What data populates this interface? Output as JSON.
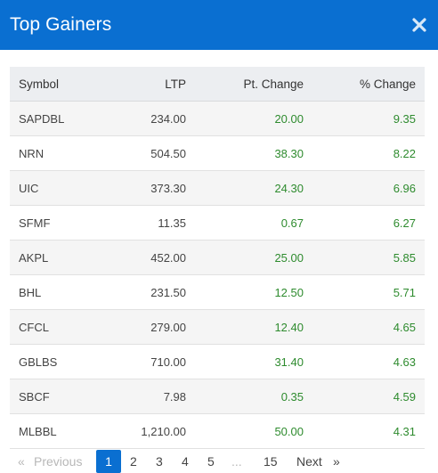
{
  "modal": {
    "title": "Top Gainers",
    "close_icon": "close-icon"
  },
  "colors": {
    "header_bg": "#0a6fd1",
    "positive": "#2e8b2e",
    "active_page": "#0a6fd1"
  },
  "table": {
    "headers": {
      "symbol": "Symbol",
      "ltp": "LTP",
      "pt_change": "Pt. Change",
      "pct_change": "% Change"
    },
    "rows": [
      {
        "symbol": "SAPDBL",
        "ltp": "234.00",
        "pt_change": "20.00",
        "pct_change": "9.35"
      },
      {
        "symbol": "NRN",
        "ltp": "504.50",
        "pt_change": "38.30",
        "pct_change": "8.22"
      },
      {
        "symbol": "UIC",
        "ltp": "373.30",
        "pt_change": "24.30",
        "pct_change": "6.96"
      },
      {
        "symbol": "SFMF",
        "ltp": "11.35",
        "pt_change": "0.67",
        "pct_change": "6.27"
      },
      {
        "symbol": "AKPL",
        "ltp": "452.00",
        "pt_change": "25.00",
        "pct_change": "5.85"
      },
      {
        "symbol": "BHL",
        "ltp": "231.50",
        "pt_change": "12.50",
        "pct_change": "5.71"
      },
      {
        "symbol": "CFCL",
        "ltp": "279.00",
        "pt_change": "12.40",
        "pct_change": "4.65"
      },
      {
        "symbol": "GBLBS",
        "ltp": "710.00",
        "pt_change": "31.40",
        "pct_change": "4.63"
      },
      {
        "symbol": "SBCF",
        "ltp": "7.98",
        "pt_change": "0.35",
        "pct_change": "4.59"
      },
      {
        "symbol": "MLBBL",
        "ltp": "1,210.00",
        "pt_change": "50.00",
        "pct_change": "4.31"
      }
    ]
  },
  "pagination": {
    "first": "«",
    "previous": "Previous",
    "pages": [
      "1",
      "2",
      "3",
      "4",
      "5",
      "15"
    ],
    "ellipsis": "...",
    "next": "Next",
    "last": "»",
    "current": "1"
  }
}
